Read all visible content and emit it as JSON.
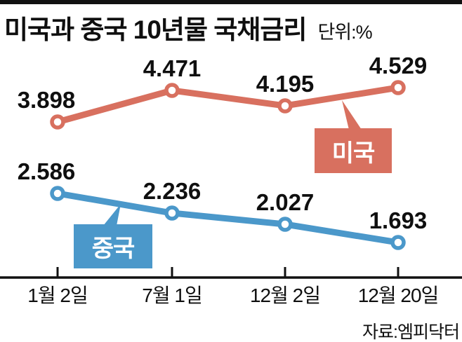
{
  "header": {
    "title": "미국과 중국 10년물 국채금리",
    "unit": "단위:%"
  },
  "footer": {
    "source": "자료:엠피닥터"
  },
  "colors": {
    "us": "#d8705f",
    "china": "#4b98ca",
    "text": "#0f0f0f",
    "axis": "#111111",
    "marker_fill": "#ffffff"
  },
  "chart_data": {
    "type": "line",
    "title": "미국과 중국 10년물 국채금리",
    "unit": "%",
    "categories": [
      "1월 2일",
      "7월 1일",
      "12월 2일",
      "12월 20일"
    ],
    "series": [
      {
        "name": "미국",
        "key": "us",
        "color": "#d8705f",
        "values": [
          3.898,
          4.471,
          4.195,
          4.529
        ]
      },
      {
        "name": "중국",
        "key": "china",
        "color": "#4b98ca",
        "values": [
          2.586,
          2.236,
          2.027,
          1.693
        ]
      }
    ],
    "value_labels": true,
    "grid": false,
    "ylim": [
      1.05,
      5.1
    ],
    "legend_position": "inline-callouts",
    "source": "자료:엠피닥터"
  }
}
